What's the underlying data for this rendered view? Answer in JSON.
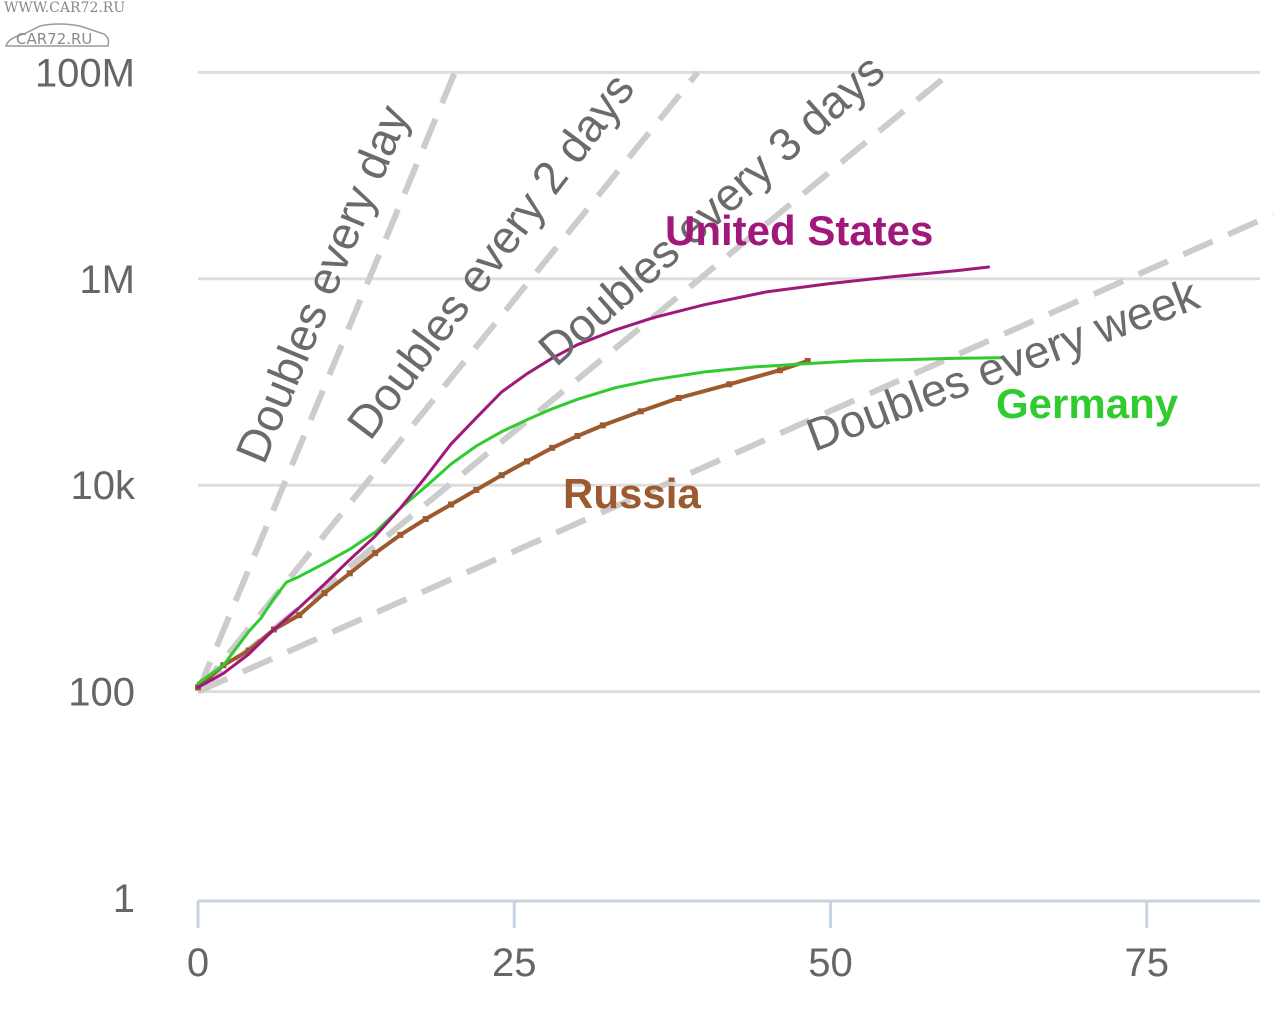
{
  "watermark": {
    "top_text": "WWW.CAR72.RU",
    "logo_text": "CAR72.RU"
  },
  "chart_data": {
    "type": "line",
    "title": "",
    "xlabel": "",
    "ylabel": "",
    "y_scale": "log",
    "xlim": [
      0,
      84
    ],
    "ylim": [
      1,
      100000000
    ],
    "x_ticks": [
      0,
      25,
      50,
      75
    ],
    "x_tick_labels": [
      "0",
      "25",
      "50",
      "75"
    ],
    "y_ticks": [
      1,
      100,
      10000,
      1000000,
      100000000
    ],
    "y_tick_labels": [
      "1",
      "100",
      "10k",
      "1M",
      "100M"
    ],
    "grid": "horizontal",
    "reference_lines": [
      {
        "label": "Doubles every day",
        "doubling_days": 1,
        "x": [
          0,
          20.3
        ],
        "y": [
          100,
          100000000
        ]
      },
      {
        "label": "Doubles every 2 days",
        "doubling_days": 2,
        "x": [
          0,
          39.5
        ],
        "y": [
          100,
          100000000
        ]
      },
      {
        "label": "Doubles every 3 days",
        "doubling_days": 3,
        "x": [
          0,
          59.5
        ],
        "y": [
          100,
          100000000
        ]
      },
      {
        "label": "Doubles every week",
        "doubling_days": 7,
        "x": [
          0,
          85
        ],
        "y": [
          100,
          4200000
        ]
      }
    ],
    "series": [
      {
        "name": "United States",
        "color": "#a0197a",
        "x": [
          0,
          2,
          4,
          6,
          8,
          10,
          12,
          14,
          16,
          18,
          20,
          22,
          24,
          26,
          28,
          30,
          33,
          36,
          40,
          45,
          50,
          55,
          60,
          62.5
        ],
        "y": [
          110,
          150,
          230,
          400,
          650,
          1100,
          1900,
          3200,
          6000,
          12000,
          25000,
          45000,
          80000,
          120000,
          170000,
          230000,
          320000,
          420000,
          560000,
          750000,
          900000,
          1050000,
          1200000,
          1300000
        ]
      },
      {
        "name": "Germany",
        "color": "#2fcb2f",
        "x": [
          0,
          2,
          4,
          5,
          6,
          7,
          8,
          10,
          12,
          14,
          16,
          18,
          20,
          22,
          24,
          26,
          28,
          30,
          33,
          36,
          40,
          44,
          48,
          52,
          56,
          60,
          63.5
        ],
        "y": [
          120,
          180,
          380,
          520,
          800,
          1150,
          1300,
          1750,
          2400,
          3500,
          6000,
          9700,
          16000,
          24000,
          33000,
          43000,
          55000,
          68000,
          88000,
          105000,
          125000,
          140000,
          150000,
          160000,
          165000,
          170000,
          172000
        ]
      },
      {
        "name": "Russia",
        "color": "#9d5a2e",
        "x": [
          0,
          2,
          4,
          6,
          8,
          10,
          12,
          14,
          16,
          18,
          20,
          22,
          24,
          26,
          28,
          30,
          32,
          35,
          38,
          42,
          46,
          48.2
        ],
        "y": [
          110,
          180,
          250,
          400,
          550,
          900,
          1400,
          2200,
          3300,
          4700,
          6500,
          9000,
          12500,
          17000,
          23000,
          30000,
          38000,
          52000,
          70000,
          95000,
          130000,
          160000
        ]
      }
    ]
  }
}
